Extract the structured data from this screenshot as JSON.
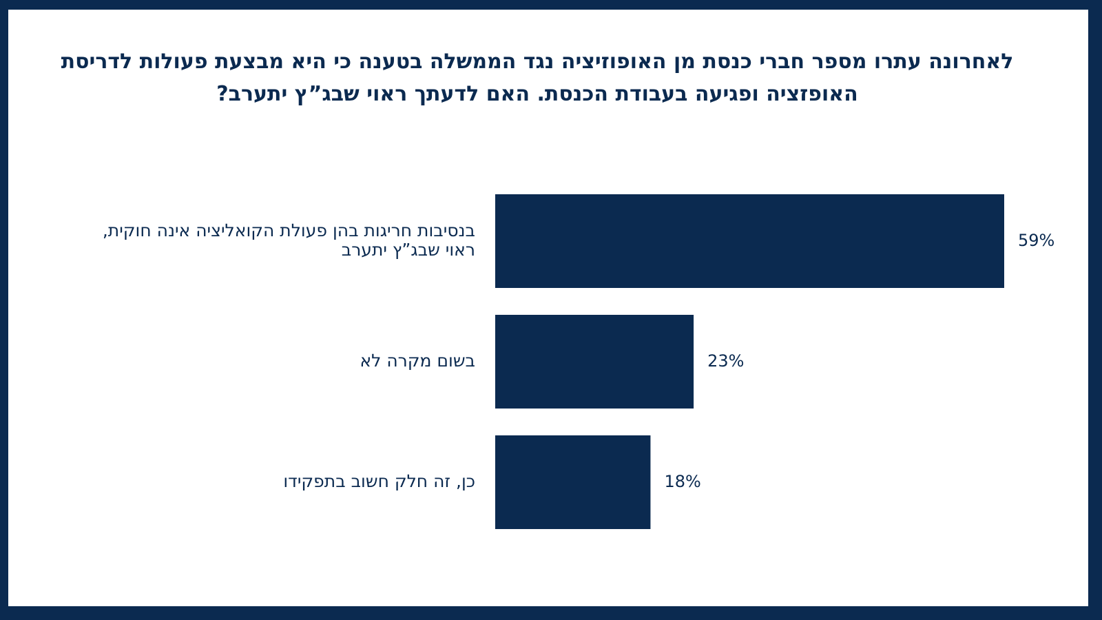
{
  "colors": {
    "frame": "#0b2a50",
    "background": "#ffffff",
    "bar": "#0b2a50",
    "text": "#0b2a50"
  },
  "chart_data": {
    "type": "bar",
    "orientation": "horizontal",
    "title": "לאחרונה עתרו מספר חברי כנסת מן האופוזיציה נגד הממשלה בטענה כי היא מבצעת פעולות לדריסת האופזציה ופגיעה בעבודת הכנסת. האם לדעתך ראוי שבג”ץ יתערב?",
    "categories": [
      [
        "בנסיבות חריגות בהן פעולת הקואליציה אינה חוקית,",
        "ראוי שבג”ץ יתערב"
      ],
      [
        "בשום מקרה לא"
      ],
      [
        "כן, זה חלק חשוב בתפקידו"
      ]
    ],
    "values": [
      59,
      23,
      18
    ],
    "value_labels": [
      "59%",
      "23%",
      "18%"
    ],
    "unit": "%",
    "xlim": [
      0,
      59
    ],
    "grid": false,
    "legend": "none"
  }
}
